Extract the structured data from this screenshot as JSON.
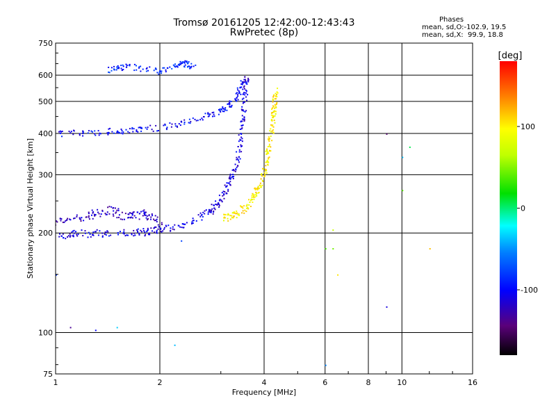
{
  "header": {
    "title_line1": "Tromsø 20161205 12:42:00-12:43:43",
    "title_line2": "RwPretec (8p)"
  },
  "stats": {
    "heading": "Phases",
    "o_mode": "mean, sd,O:-102.9, 19.5",
    "x_mode": "mean, sd,X:  99.9, 18.8"
  },
  "colorbar": {
    "label": "[deg]",
    "tick_values": [
      100,
      0,
      -100
    ],
    "tick_labels": [
      "100",
      "0",
      "-100"
    ],
    "range": [
      -180,
      180
    ]
  },
  "chart_data": {
    "type": "scatter",
    "xlabel": "Frequency [MHz]",
    "ylabel": "Stationary phase Virtual Height [km]",
    "xscale": "log",
    "yscale": "log",
    "xlim": [
      1,
      16
    ],
    "ylim": [
      75,
      750
    ],
    "x_ticks": [
      1,
      2,
      4,
      6,
      8,
      10,
      16
    ],
    "x_tick_labels": [
      "1",
      "2",
      "4",
      "6",
      "8",
      "10",
      "16"
    ],
    "y_ticks": [
      75,
      100,
      200,
      300,
      400,
      500,
      600,
      750
    ],
    "y_tick_labels": [
      "75",
      "100",
      "200",
      "300",
      "400",
      "500",
      "600",
      "750"
    ],
    "grid": true,
    "color_encoding": "phase [deg]",
    "traces": [
      {
        "mode": "O",
        "phase_deg": -110,
        "kind": "F-trace",
        "points": [
          [
            1.0,
            198
          ],
          [
            1.2,
            200
          ],
          [
            1.5,
            200
          ],
          [
            1.8,
            202
          ],
          [
            2.0,
            205
          ],
          [
            2.4,
            215
          ],
          [
            2.8,
            235
          ],
          [
            3.0,
            255
          ],
          [
            3.2,
            290
          ],
          [
            3.35,
            340
          ],
          [
            3.45,
            420
          ],
          [
            3.5,
            520
          ],
          [
            3.55,
            600
          ]
        ]
      },
      {
        "mode": "O",
        "phase_deg": -100,
        "kind": "second-hop",
        "points": [
          [
            1.0,
            400
          ],
          [
            1.3,
            405
          ],
          [
            1.6,
            410
          ],
          [
            2.0,
            418
          ],
          [
            2.5,
            440
          ],
          [
            3.0,
            470
          ],
          [
            3.3,
            510
          ],
          [
            3.45,
            570
          ]
        ]
      },
      {
        "mode": "X",
        "phase_deg": 100,
        "kind": "F-trace",
        "points": [
          [
            3.0,
            222
          ],
          [
            3.3,
            228
          ],
          [
            3.6,
            245
          ],
          [
            3.8,
            270
          ],
          [
            4.0,
            310
          ],
          [
            4.1,
            360
          ],
          [
            4.2,
            420
          ],
          [
            4.25,
            480
          ],
          [
            4.3,
            540
          ]
        ]
      },
      {
        "mode": "O",
        "phase_deg": -120,
        "kind": "spread-F",
        "points": [
          [
            1.0,
            215
          ],
          [
            1.2,
            225
          ],
          [
            1.4,
            235
          ],
          [
            1.6,
            225
          ],
          [
            1.8,
            230
          ],
          [
            2.0,
            215
          ]
        ]
      },
      {
        "mode": "O",
        "phase_deg": -90,
        "kind": "upper echoes",
        "points": [
          [
            1.4,
            625
          ],
          [
            1.6,
            640
          ],
          [
            2.0,
            620
          ],
          [
            2.3,
            655
          ],
          [
            2.5,
            640
          ]
        ]
      },
      {
        "mode": "mixed",
        "phase_deg": 40,
        "kind": "scattered",
        "points": [
          [
            1.0,
            150
          ],
          [
            1.1,
            104
          ],
          [
            1.3,
            102
          ],
          [
            1.5,
            104
          ],
          [
            2.2,
            92
          ],
          [
            2.3,
            190
          ],
          [
            6.0,
            180
          ],
          [
            6.3,
            180
          ],
          [
            6.3,
            205
          ],
          [
            6.5,
            150
          ],
          [
            9.0,
            120
          ],
          [
            9.0,
            400
          ],
          [
            10.0,
            340
          ],
          [
            10.0,
            270
          ],
          [
            10.5,
            365
          ],
          [
            12.0,
            180
          ],
          [
            6.0,
            80
          ],
          [
            9.0,
            75
          ]
        ]
      }
    ]
  }
}
